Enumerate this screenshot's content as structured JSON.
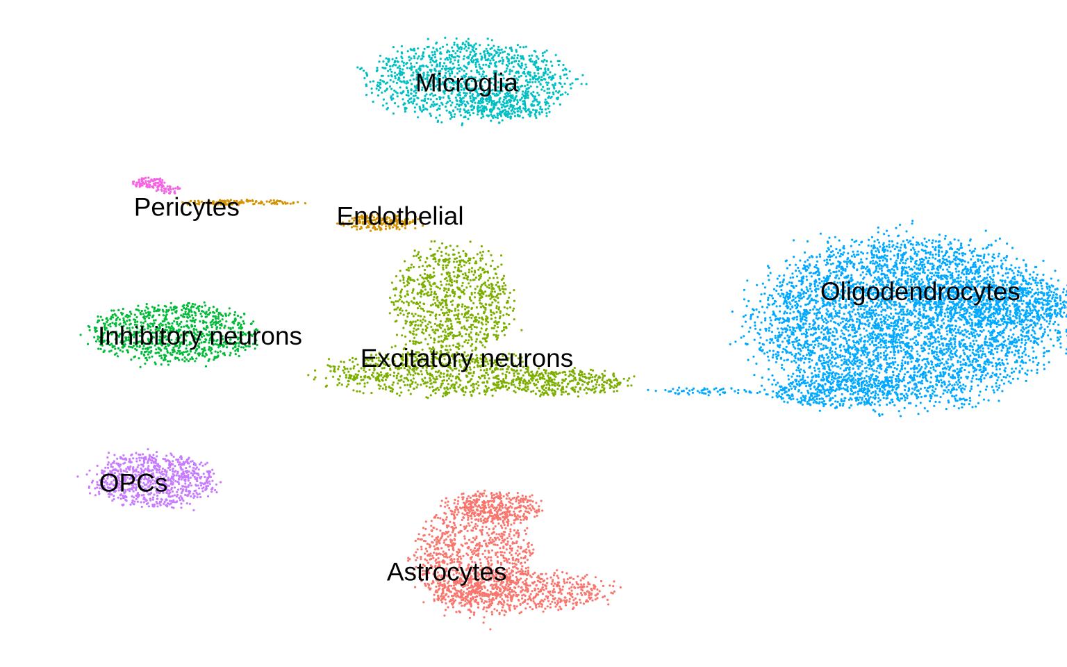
{
  "chart_data": {
    "type": "scatter",
    "title": "",
    "xlabel": "",
    "ylabel": "",
    "grid": false,
    "axes_visible": false,
    "legend": "none",
    "series": [
      {
        "name": "Microglia",
        "label": "Microglia",
        "color": "#00BFC4",
        "blobs": [
          {
            "cx": -1.0,
            "cy": 7.2,
            "rx": 1.5,
            "ry": 0.85,
            "n": 1200
          },
          {
            "cx": -0.4,
            "cy": 6.6,
            "rx": 0.7,
            "ry": 0.3,
            "n": 200
          }
        ],
        "label_pos": {
          "x": -1.0,
          "y": 7.1
        }
      },
      {
        "name": "Pericytes",
        "label": "Pericytes",
        "color": "#F564E3",
        "blobs": [
          {
            "cx": -5.8,
            "cy": 4.9,
            "rx": 0.25,
            "ry": 0.12,
            "n": 80
          },
          {
            "cx": -5.5,
            "cy": 4.75,
            "rx": 0.2,
            "ry": 0.1,
            "n": 40
          }
        ],
        "label_pos": {
          "x": -5.2,
          "y": 4.3
        }
      },
      {
        "name": "Endothelial",
        "label": "Endothelial",
        "color": "#D39200",
        "blobs": [
          {
            "cx": -4.4,
            "cy": 4.45,
            "rx": 0.9,
            "ry": 0.06,
            "n": 120
          },
          {
            "cx": -2.3,
            "cy": 4.0,
            "rx": 0.6,
            "ry": 0.18,
            "n": 180
          }
        ],
        "label_pos": {
          "x": -2.0,
          "y": 4.1
        }
      },
      {
        "name": "Inhibitory neurons",
        "label": "Inhibitory neurons",
        "color": "#00BA38",
        "blobs": [
          {
            "cx": -5.4,
            "cy": 1.5,
            "rx": 1.2,
            "ry": 0.65,
            "n": 900
          }
        ],
        "label_pos": {
          "x": -5.0,
          "y": 1.4
        }
      },
      {
        "name": "Excitatory neurons",
        "label": "Excitatory neurons",
        "color": "#7CAE00",
        "blobs": [
          {
            "cx": -1.2,
            "cy": 2.2,
            "rx": 0.9,
            "ry": 1.2,
            "n": 900
          },
          {
            "cx": -1.5,
            "cy": 0.6,
            "rx": 1.6,
            "ry": 0.5,
            "n": 700
          },
          {
            "cx": 0.4,
            "cy": 0.4,
            "rx": 1.0,
            "ry": 0.3,
            "n": 350
          }
        ],
        "label_pos": {
          "x": -1.0,
          "y": 0.9
        }
      },
      {
        "name": "OPCs",
        "label": "OPCs",
        "color": "#C77CFF",
        "blobs": [
          {
            "cx": -5.7,
            "cy": -1.8,
            "rx": 0.9,
            "ry": 0.6,
            "n": 800
          }
        ],
        "label_pos": {
          "x": -6.0,
          "y": -1.9
        }
      },
      {
        "name": "Astrocytes",
        "label": "Astrocytes",
        "color": "#F8766D",
        "blobs": [
          {
            "cx": -0.9,
            "cy": -3.5,
            "rx": 0.85,
            "ry": 1.3,
            "n": 1000
          },
          {
            "cx": -0.2,
            "cy": -4.3,
            "rx": 1.3,
            "ry": 0.45,
            "n": 600
          },
          {
            "cx": -0.5,
            "cy": -2.4,
            "rx": 0.6,
            "ry": 0.35,
            "n": 300
          }
        ],
        "label_pos": {
          "x": -1.3,
          "y": -3.9
        }
      },
      {
        "name": "Oligodendrocytes",
        "label": "Oligodendrocytes",
        "color": "#00A9FF",
        "blobs": [
          {
            "cx": 5.6,
            "cy": 1.8,
            "rx": 2.2,
            "ry": 1.8,
            "n": 4500
          },
          {
            "cx": 7.0,
            "cy": 2.2,
            "rx": 1.3,
            "ry": 0.5,
            "n": 600
          },
          {
            "cx": 4.5,
            "cy": 0.2,
            "rx": 1.0,
            "ry": 0.35,
            "n": 400
          },
          {
            "cx": 2.6,
            "cy": 0.2,
            "rx": 0.8,
            "ry": 0.1,
            "n": 60
          }
        ],
        "label_pos": {
          "x": 5.8,
          "y": 2.4
        }
      }
    ],
    "xlim": [
      -8,
      8
    ],
    "ylim": [
      -6,
      9
    ]
  }
}
